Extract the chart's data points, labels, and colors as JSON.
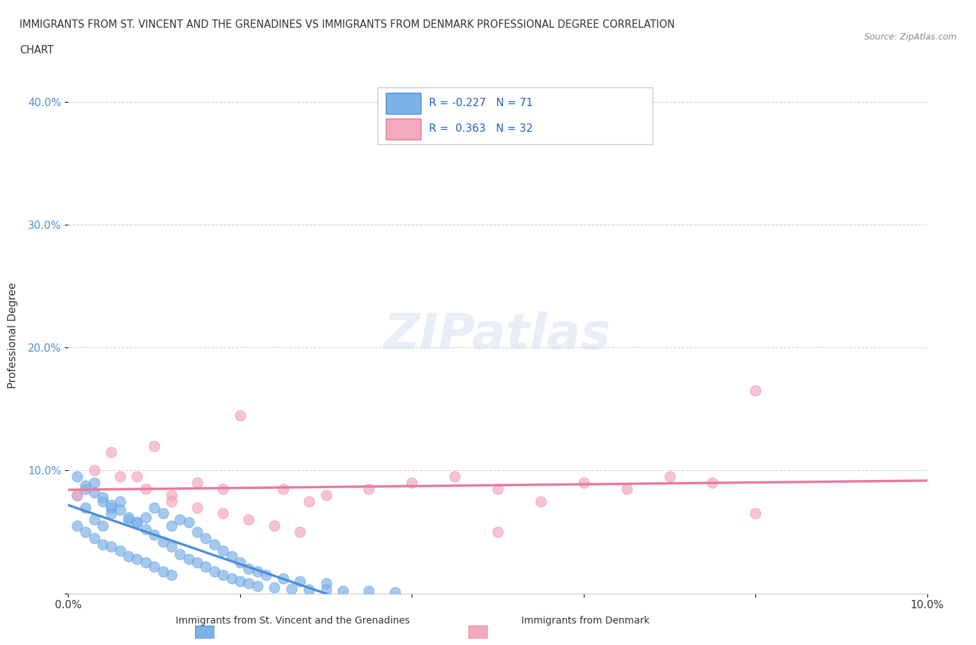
{
  "title_line1": "IMMIGRANTS FROM ST. VINCENT AND THE GRENADINES VS IMMIGRANTS FROM DENMARK PROFESSIONAL DEGREE CORRELATION",
  "title_line2": "CHART",
  "source": "Source: ZipAtlas.com",
  "xlabel": "",
  "ylabel": "Professional Degree",
  "xlim": [
    0.0,
    0.1
  ],
  "ylim": [
    0.0,
    0.42
  ],
  "xticks": [
    0.0,
    0.02,
    0.04,
    0.06,
    0.08,
    0.1
  ],
  "xtick_labels": [
    "0.0%",
    "",
    "",
    "",
    "",
    "10.0%"
  ],
  "yticks": [
    0.0,
    0.1,
    0.2,
    0.3,
    0.4
  ],
  "ytick_labels": [
    "",
    "10.0%",
    "20.0%",
    "30.0%",
    "40.0%"
  ],
  "r_blue": -0.227,
  "n_blue": 71,
  "r_pink": 0.363,
  "n_pink": 32,
  "blue_color": "#7FB3E8",
  "pink_color": "#F4AABC",
  "blue_line_color": "#4A90D9",
  "pink_line_color": "#E87A9A",
  "legend_label_blue": "Immigrants from St. Vincent and the Grenadines",
  "legend_label_pink": "Immigrants from Denmark",
  "watermark": "ZIPatlas",
  "blue_scatter_x": [
    0.002,
    0.003,
    0.004,
    0.005,
    0.006,
    0.007,
    0.008,
    0.009,
    0.01,
    0.011,
    0.012,
    0.013,
    0.014,
    0.015,
    0.016,
    0.017,
    0.018,
    0.019,
    0.02,
    0.021,
    0.022,
    0.023,
    0.025,
    0.027,
    0.03,
    0.001,
    0.002,
    0.003,
    0.004,
    0.005,
    0.001,
    0.002,
    0.003,
    0.004,
    0.005,
    0.006,
    0.007,
    0.008,
    0.009,
    0.01,
    0.011,
    0.012,
    0.001,
    0.002,
    0.003,
    0.004,
    0.005,
    0.006,
    0.007,
    0.008,
    0.009,
    0.01,
    0.011,
    0.012,
    0.013,
    0.014,
    0.015,
    0.016,
    0.017,
    0.018,
    0.019,
    0.02,
    0.021,
    0.022,
    0.024,
    0.026,
    0.028,
    0.03,
    0.032,
    0.035,
    0.038
  ],
  "blue_scatter_y": [
    0.07,
    0.06,
    0.055,
    0.065,
    0.075,
    0.06,
    0.058,
    0.062,
    0.07,
    0.065,
    0.055,
    0.06,
    0.058,
    0.05,
    0.045,
    0.04,
    0.035,
    0.03,
    0.025,
    0.02,
    0.018,
    0.015,
    0.012,
    0.01,
    0.008,
    0.08,
    0.085,
    0.09,
    0.075,
    0.07,
    0.055,
    0.05,
    0.045,
    0.04,
    0.038,
    0.035,
    0.03,
    0.028,
    0.025,
    0.022,
    0.018,
    0.015,
    0.095,
    0.088,
    0.082,
    0.078,
    0.072,
    0.068,
    0.062,
    0.058,
    0.052,
    0.048,
    0.042,
    0.038,
    0.032,
    0.028,
    0.025,
    0.022,
    0.018,
    0.015,
    0.012,
    0.01,
    0.008,
    0.006,
    0.005,
    0.004,
    0.003,
    0.003,
    0.002,
    0.002,
    0.001
  ],
  "pink_scatter_x": [
    0.005,
    0.008,
    0.01,
    0.012,
    0.015,
    0.018,
    0.02,
    0.025,
    0.028,
    0.03,
    0.035,
    0.04,
    0.045,
    0.05,
    0.055,
    0.06,
    0.065,
    0.07,
    0.075,
    0.08,
    0.001,
    0.003,
    0.006,
    0.009,
    0.012,
    0.015,
    0.018,
    0.021,
    0.024,
    0.027,
    0.05,
    0.08
  ],
  "pink_scatter_y": [
    0.115,
    0.095,
    0.12,
    0.08,
    0.09,
    0.085,
    0.145,
    0.085,
    0.075,
    0.08,
    0.085,
    0.09,
    0.095,
    0.085,
    0.075,
    0.09,
    0.085,
    0.095,
    0.09,
    0.165,
    0.08,
    0.1,
    0.095,
    0.085,
    0.075,
    0.07,
    0.065,
    0.06,
    0.055,
    0.05,
    0.05,
    0.065
  ]
}
